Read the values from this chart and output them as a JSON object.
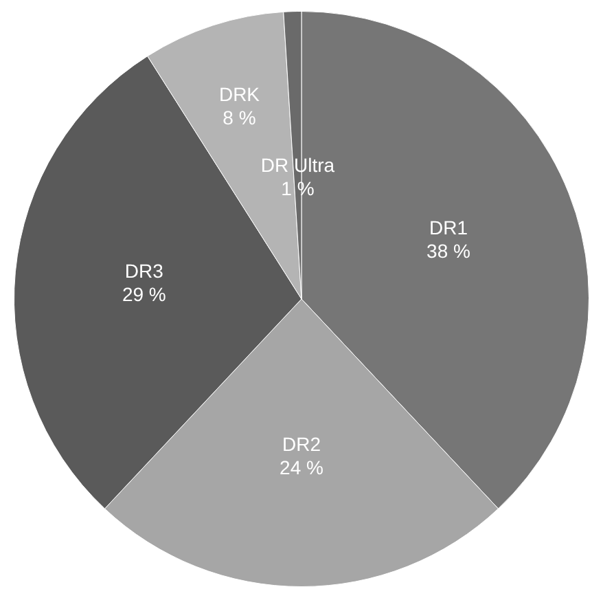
{
  "chart_data": {
    "type": "pie",
    "categories": [
      "DR1",
      "DR2",
      "DR3",
      "DRK",
      "DR Ultra"
    ],
    "values": [
      38,
      24,
      29,
      8,
      1
    ],
    "colors": [
      "#767676",
      "#a6a6a6",
      "#5a5a5a",
      "#b4b4b4",
      "#6a6a6a"
    ],
    "value_labels": [
      "38 %",
      "24 %",
      "29 %",
      "8 %",
      "1 %"
    ],
    "legend": false
  }
}
